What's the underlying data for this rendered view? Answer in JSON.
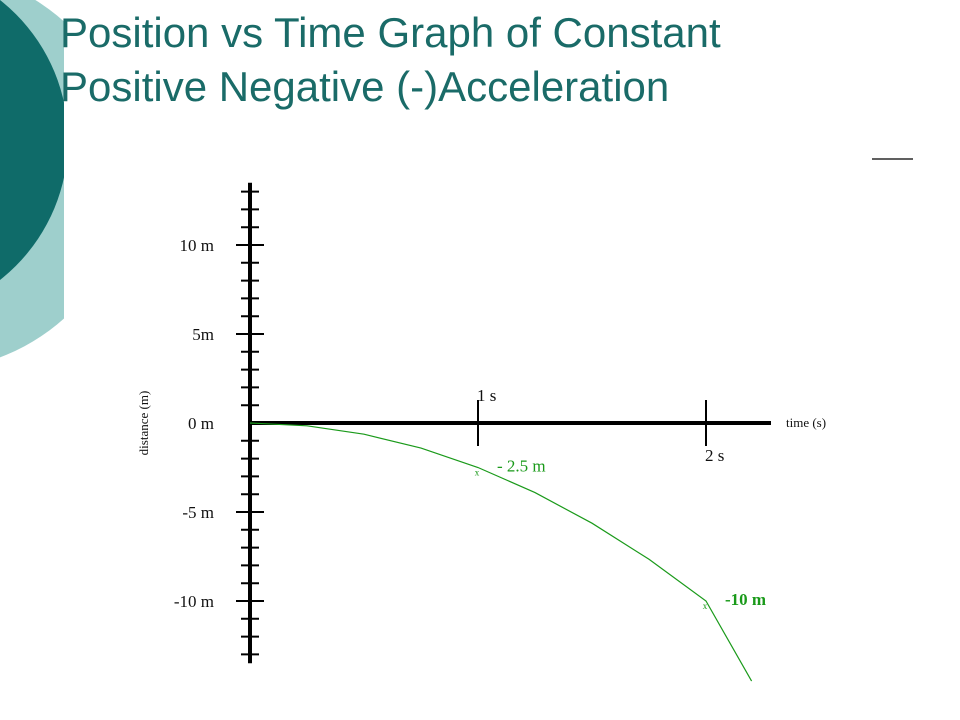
{
  "slide": {
    "title_lines": [
      "Position vs Time Graph of Constant",
      "Positive Negative (-)Acceleration"
    ],
    "accent_dark": "#0f6b69",
    "accent_light": "#9ecfcc"
  },
  "chart_data": {
    "type": "line",
    "xlabel": "time (s)",
    "ylabel": "distance (m)",
    "xlim": [
      0,
      2.25
    ],
    "ylim": [
      -13.5,
      13.5
    ],
    "x_ticks": [
      {
        "value": 1,
        "label": "1 s",
        "position": "above"
      },
      {
        "value": 2,
        "label": "2 s",
        "position": "below"
      }
    ],
    "y_ticks": [
      {
        "value": 10,
        "label": "10 m"
      },
      {
        "value": 5,
        "label": "5m"
      },
      {
        "value": 0,
        "label": "0 m"
      },
      {
        "value": -5,
        "label": "-5 m"
      },
      {
        "value": -10,
        "label": "-10 m"
      }
    ],
    "y_minor_step": 1,
    "series": [
      {
        "color": "#1a9a1a",
        "x": [
          0,
          0.25,
          0.5,
          0.75,
          1,
          1.25,
          1.5,
          1.75,
          2,
          2.2
        ],
        "y": [
          0,
          -0.16,
          -0.63,
          -1.41,
          -2.5,
          -3.91,
          -5.63,
          -7.66,
          -10,
          -14.5
        ],
        "points": [
          {
            "x": 1,
            "y": -2.5,
            "label": "- 2.5 m"
          },
          {
            "x": 2,
            "y": -10,
            "label": "-10 m"
          }
        ]
      }
    ],
    "grid": false,
    "legend": "none"
  }
}
